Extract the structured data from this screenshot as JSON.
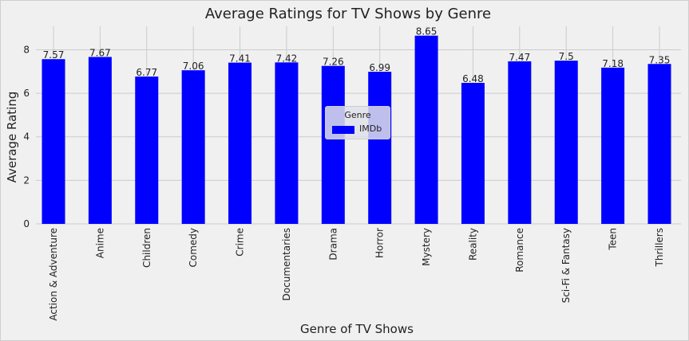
{
  "chart_data": {
    "type": "bar",
    "title": "Average Ratings for TV Shows by Genre",
    "xlabel": "Genre of TV Shows",
    "ylabel": "Average Rating",
    "categories": [
      "Action & Adventure",
      "Anime",
      "Children",
      "Comedy",
      "Crime",
      "Documentaries",
      "Drama",
      "Horror",
      "Mystery",
      "Reality",
      "Romance",
      "Sci-Fi & Fantasy",
      "Teen",
      "Thrillers"
    ],
    "series": [
      {
        "name": "IMDb",
        "values": [
          7.57,
          7.67,
          6.77,
          7.06,
          7.41,
          7.42,
          7.26,
          6.99,
          8.65,
          6.48,
          7.47,
          7.5,
          7.18,
          7.35
        ],
        "labels": [
          "7.57",
          "7.67",
          "6.77",
          "7.06",
          "7.41",
          "7.42",
          "7.26",
          "6.99",
          "8.65",
          "6.48",
          "7.47",
          "7.5",
          "7.18",
          "7.35"
        ],
        "color": "#0000ff"
      }
    ],
    "ylim": [
      0,
      9.08
    ],
    "yticks": [
      0,
      2,
      4,
      6,
      8
    ],
    "grid": true,
    "legend": {
      "title": "Genre",
      "position": "center"
    }
  },
  "colors": {
    "background": "#f0f0f0",
    "grid": "#cbcbcb",
    "bar": "#0000ff",
    "text": "#222222"
  }
}
